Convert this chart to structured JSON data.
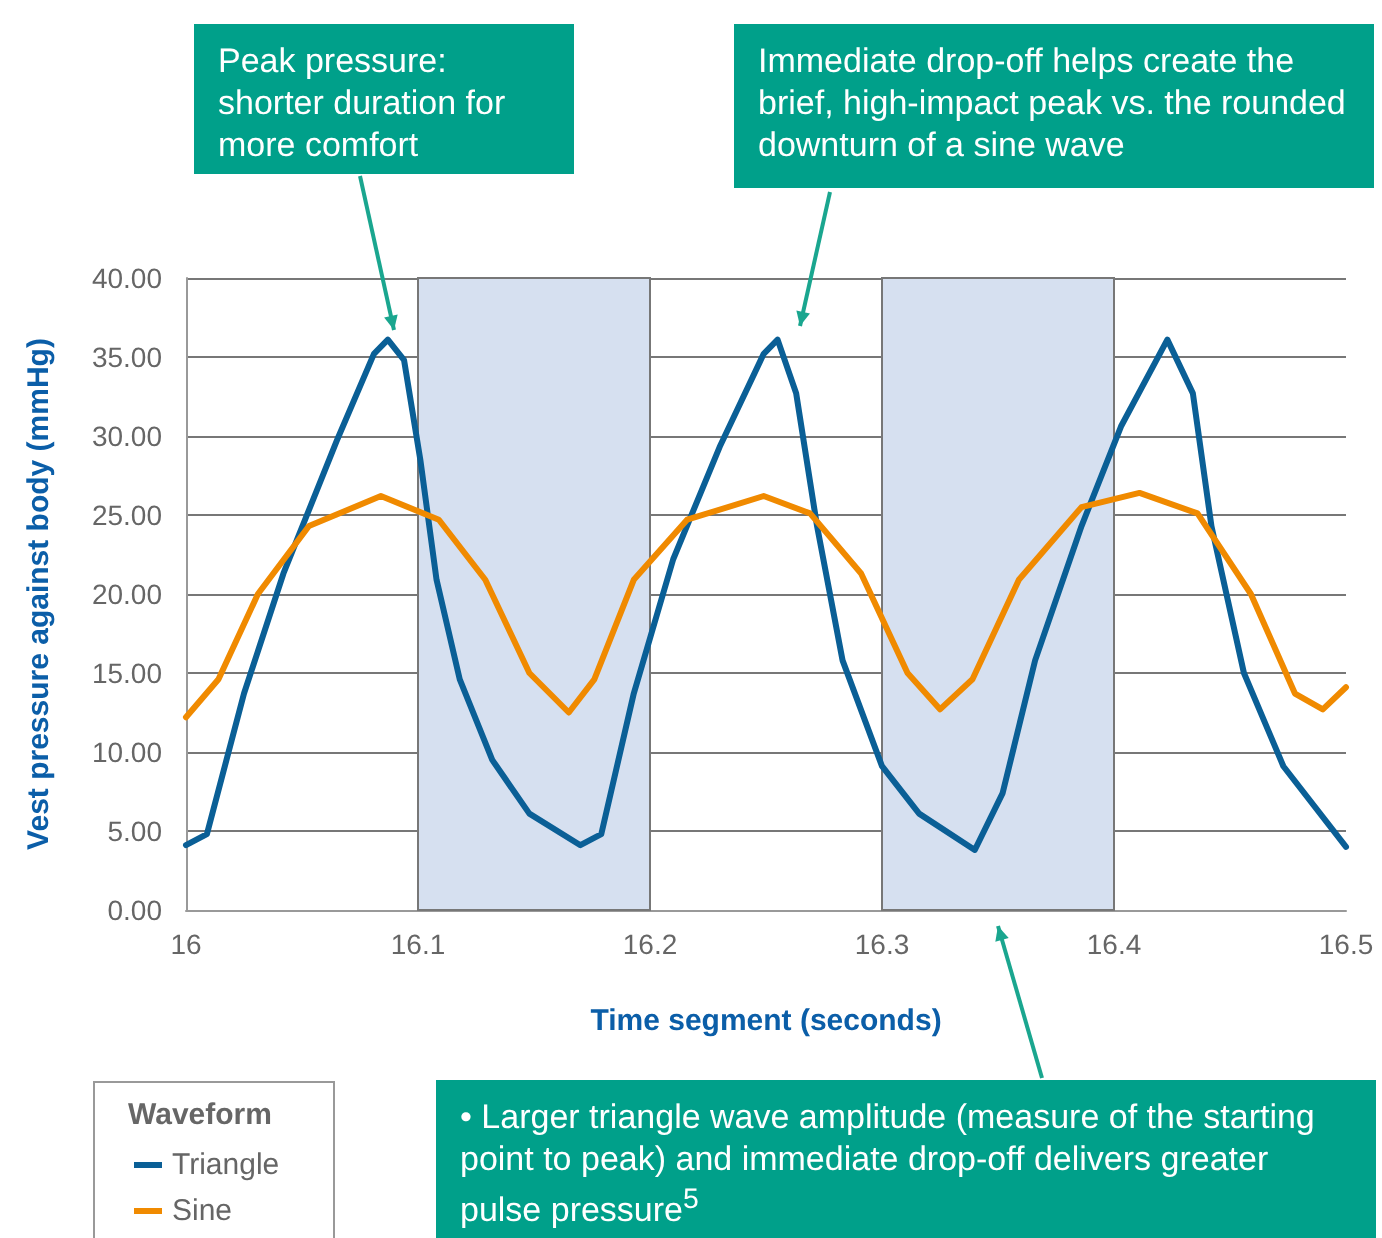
{
  "chart_data": {
    "type": "line",
    "xlabel": "Time segment (seconds)",
    "ylabel": "Vest pressure against body (mmHg)",
    "legend_title": "Waveform",
    "legend": "bottom left",
    "grid": "y",
    "marker": "none",
    "line_style": "solid",
    "xlim": [
      16,
      16.5
    ],
    "xticks": [
      16,
      16.1,
      16.2,
      16.3,
      16.4,
      16.5
    ],
    "ylim": [
      0,
      40
    ],
    "yticks": [
      {
        "value": 0,
        "label": "0.00"
      },
      {
        "value": 5,
        "label": "5.00"
      },
      {
        "value": 10,
        "label": "10.00"
      },
      {
        "value": 15,
        "label": "15.00"
      },
      {
        "value": 20,
        "label": "20.00"
      },
      {
        "value": 25,
        "label": "25.00"
      },
      {
        "value": 30,
        "label": "30.00"
      },
      {
        "value": 35,
        "label": "35.00"
      },
      {
        "value": 40,
        "label": "40.00"
      }
    ],
    "bands": [
      {
        "axis": "x",
        "from": 16.1,
        "to": 16.2,
        "color": "#d6e0f0"
      },
      {
        "axis": "x",
        "from": 16.3,
        "to": 16.4,
        "color": "#d6e0f0"
      }
    ],
    "series": [
      {
        "name": "Triangle",
        "color": "#0a5f96",
        "x": [
          16,
          16.009,
          16.025,
          16.042,
          16.065,
          16.081,
          16.087,
          16.094,
          16.101,
          16.108,
          16.118,
          16.132,
          16.148,
          16.17,
          16.179,
          16.193,
          16.21,
          16.23,
          16.249,
          16.255,
          16.263,
          16.272,
          16.283,
          16.3,
          16.316,
          16.34,
          16.352,
          16.366,
          16.386,
          16.403,
          16.423,
          16.434,
          16.442,
          16.456,
          16.473,
          16.5
        ],
        "values": [
          4.1,
          4.8,
          13.7,
          21.3,
          29.7,
          35.2,
          36.1,
          34.8,
          28.5,
          20.9,
          14.6,
          9.5,
          6.1,
          4.1,
          4.8,
          13.7,
          22.2,
          29.3,
          35.2,
          36.1,
          32.7,
          24.3,
          15.8,
          9.1,
          6.1,
          3.8,
          7.4,
          15.8,
          24.3,
          30.6,
          36.1,
          32.7,
          24.3,
          15,
          9.1,
          4
        ]
      },
      {
        "name": "Sine",
        "color": "#f08a00",
        "x": [
          16,
          16.014,
          16.031,
          16.053,
          16.084,
          16.109,
          16.129,
          16.148,
          16.165,
          16.176,
          16.193,
          16.216,
          16.249,
          16.269,
          16.291,
          16.311,
          16.325,
          16.339,
          16.359,
          16.386,
          16.411,
          16.436,
          16.459,
          16.478,
          16.49,
          16.5
        ],
        "values": [
          12.2,
          14.6,
          20,
          24.3,
          26.2,
          24.7,
          20.9,
          15,
          12.5,
          14.6,
          20.9,
          24.7,
          26.2,
          25.1,
          21.3,
          15,
          12.7,
          14.6,
          20.9,
          25.5,
          26.4,
          25.1,
          20,
          13.7,
          12.7,
          14.1
        ]
      }
    ],
    "annotations": [
      "Peak pressure: shorter duration for more comfort",
      "Immediate drop-off helps create the brief, high-impact peak vs. the rounded downturn of a sine wave",
      "• Larger triangle wave amplitude (measure of the starting point to peak) and immediate drop-off delivers greater pulse pressure$^{5}$"
    ]
  }
}
